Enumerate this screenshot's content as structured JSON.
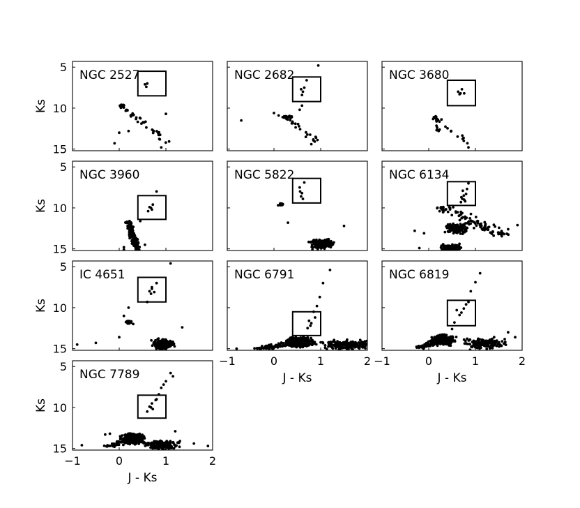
{
  "figure": {
    "xlabel": "J - Ks",
    "ylabel": "Ks",
    "xlim": [
      -1,
      2
    ],
    "ylim": [
      15.2,
      4.3
    ],
    "y_inverted": true,
    "xticks": [
      -1,
      0,
      1,
      2
    ],
    "xtick_labels": [
      "−1",
      "0",
      "1",
      "2"
    ],
    "yticks": [
      5,
      10,
      15
    ],
    "ytick_labels": [
      "5",
      "10",
      "15"
    ],
    "grid": false,
    "marker_color": "#000000"
  },
  "chart_data": [
    {
      "type": "scatter",
      "title": "NGC 2527",
      "box": {
        "x": [
          0.4,
          1.0
        ],
        "y": [
          5.5,
          8.5
        ]
      },
      "features": {
        "rc": [
          [
            0.55,
            7.1
          ],
          [
            0.58,
            7.4
          ],
          [
            0.6,
            7.0
          ]
        ],
        "rgb": [],
        "ms": [
          [
            0.05,
            9.7,
            15,
            0.2
          ],
          [
            1.05,
            14.2,
            40,
            0.25
          ]
        ],
        "extra": [
          [
            -0.1,
            14.3
          ],
          [
            0.0,
            13.0
          ],
          [
            0.9,
            14.8
          ],
          [
            1.0,
            10.7
          ],
          [
            0.2,
            12.8
          ]
        ]
      }
    },
    {
      "type": "scatter",
      "title": "NGC 2682",
      "box": {
        "x": [
          0.4,
          1.0
        ],
        "y": [
          6.2,
          9.2
        ]
      },
      "features": {
        "rc": [
          [
            0.58,
            7.7
          ],
          [
            0.62,
            8.0
          ],
          [
            0.6,
            8.4
          ],
          [
            0.65,
            7.5
          ],
          [
            0.7,
            6.6
          ],
          [
            0.6,
            9.7
          ],
          [
            0.55,
            10.2
          ]
        ],
        "rgb": [],
        "ms": [
          [
            0.25,
            11.1,
            8,
            0.2
          ],
          [
            0.95,
            14.2,
            24,
            0.3
          ],
          [
            0.4,
            11.0,
            6,
            0.15
          ]
        ],
        "extra": [
          [
            -0.7,
            11.5
          ],
          [
            0.0,
            10.6
          ],
          [
            0.1,
            10.9
          ],
          [
            0.95,
            4.8
          ],
          [
            0.8,
            14.4
          ],
          [
            0.9,
            13.6
          ]
        ]
      }
    },
    {
      "type": "scatter",
      "title": "NGC 3680",
      "box": {
        "x": [
          0.4,
          1.0
        ],
        "y": [
          6.6,
          9.7
        ]
      },
      "features": {
        "rc": [
          [
            0.63,
            8.0
          ],
          [
            0.68,
            8.2
          ],
          [
            0.76,
            8.2
          ],
          [
            0.71,
            7.7
          ],
          [
            0.66,
            8.3
          ]
        ],
        "rgb": [],
        "ms": [
          [
            0.15,
            11.2,
            6,
            0.1
          ],
          [
            0.9,
            14.5,
            16,
            0.25
          ],
          [
            0.2,
            12.8,
            8,
            0.2
          ]
        ],
        "extra": [
          [
            0.85,
            14.8
          ],
          [
            0.75,
            14.0
          ]
        ]
      }
    },
    {
      "type": "scatter",
      "title": "NGC 3960",
      "box": {
        "x": [
          0.4,
          1.0
        ],
        "y": [
          8.5,
          11.4
        ]
      },
      "features": {
        "rc": [
          [
            0.65,
            9.9
          ],
          [
            0.7,
            10.2
          ],
          [
            0.62,
            10.4
          ],
          [
            0.72,
            9.6
          ],
          [
            0.68,
            10.0
          ]
        ],
        "rgb": [
          [
            0.8,
            8.0
          ]
        ],
        "ms": [
          [
            0.2,
            11.8,
            2,
            0.15
          ],
          [
            0.4,
            15.2,
            140,
            0.2
          ]
        ],
        "extra": [
          [
            0.1,
            14.8
          ],
          [
            0.1,
            15.1
          ],
          [
            0.55,
            14.5
          ],
          [
            0.45,
            11.6
          ]
        ]
      }
    },
    {
      "type": "scatter",
      "title": "NGC 5822",
      "box": {
        "x": [
          0.4,
          1.0
        ],
        "y": [
          6.4,
          9.4
        ]
      },
      "features": {
        "rc": [
          [
            0.55,
            7.5
          ],
          [
            0.6,
            8.2
          ],
          [
            0.58,
            8.6
          ],
          [
            0.62,
            8.9
          ],
          [
            0.65,
            6.9
          ],
          [
            0.56,
            8.0
          ]
        ],
        "rgb": [],
        "ms": [
          [
            0.15,
            9.6,
            20,
            0.15
          ],
          [
            1.0,
            14.4,
            170,
            0.35
          ]
        ],
        "extra": [
          [
            1.5,
            12.2
          ],
          [
            0.3,
            11.8
          ],
          [
            0.9,
            14.8
          ]
        ]
      }
    },
    {
      "type": "scatter",
      "title": "NGC 6134",
      "box": {
        "x": [
          0.4,
          1.0
        ],
        "y": [
          6.8,
          9.7
        ]
      },
      "features": {
        "rc": [
          [
            0.7,
            8.7
          ],
          [
            0.72,
            8.9
          ],
          [
            0.75,
            8.5
          ],
          [
            0.78,
            9.2
          ],
          [
            0.8,
            8.3
          ],
          [
            0.73,
            7.9
          ],
          [
            0.82,
            7.7
          ],
          [
            0.76,
            9.0
          ],
          [
            0.69,
            9.3
          ]
        ],
        "rgb": [
          [
            0.85,
            7.0
          ]
        ],
        "ms": [
          [
            0.3,
            10.0,
            8,
            0.15
          ],
          [
            0.6,
            12.5,
            160,
            0.3
          ],
          [
            0.45,
            15.0,
            120,
            0.35
          ],
          [
            1.6,
            13.4,
            90,
            0.7
          ]
        ],
        "extra": [
          [
            -0.3,
            12.8
          ],
          [
            -0.1,
            13.1
          ],
          [
            -0.2,
            14.9
          ],
          [
            0.3,
            15.2
          ],
          [
            1.9,
            12.1
          ],
          [
            1.7,
            12.6
          ]
        ]
      }
    },
    {
      "type": "scatter",
      "title": "IC 4651",
      "box": {
        "x": [
          0.4,
          1.0
        ],
        "y": [
          6.3,
          9.3
        ]
      },
      "features": {
        "rc": [
          [
            0.7,
            7.7
          ],
          [
            0.65,
            8.0
          ],
          [
            0.75,
            8.1
          ],
          [
            0.68,
            8.3
          ],
          [
            0.8,
            7.0
          ],
          [
            0.6,
            9.3
          ],
          [
            0.7,
            7.5
          ]
        ],
        "rgb": [
          [
            0.2,
            10.0
          ],
          [
            0.1,
            11.0
          ]
        ],
        "ms": [
          [
            0.2,
            11.8,
            25,
            0.15
          ],
          [
            0.95,
            14.5,
            200,
            0.3
          ]
        ],
        "extra": [
          [
            -0.9,
            14.5
          ],
          [
            -0.5,
            14.3
          ],
          [
            0.0,
            13.6
          ],
          [
            1.35,
            12.4
          ],
          [
            1.1,
            4.6
          ],
          [
            0.3,
            12.0
          ]
        ]
      }
    },
    {
      "type": "scatter",
      "title": "NGC 6791",
      "box": {
        "x": [
          0.4,
          1.0
        ],
        "y": [
          10.5,
          13.4
        ]
      },
      "features": {
        "rc": [
          [
            0.75,
            11.6
          ],
          [
            0.8,
            11.9
          ],
          [
            0.78,
            12.2
          ],
          [
            0.72,
            12.5
          ]
        ],
        "rgb": [
          [
            0.85,
            10.5
          ],
          [
            0.92,
            9.8
          ],
          [
            0.98,
            8.7
          ],
          [
            1.05,
            7.0
          ],
          [
            1.2,
            5.4
          ],
          [
            0.88,
            11.2
          ]
        ],
        "ms": [
          [
            0.55,
            14.2,
            500,
            0.35
          ],
          [
            1.6,
            14.6,
            200,
            0.8
          ],
          [
            -0.3,
            15.0,
            100,
            0.6
          ]
        ],
        "extra": [
          [
            -0.8,
            15.0
          ],
          [
            1.95,
            14.1
          ],
          [
            1.8,
            14.6
          ]
        ]
      }
    },
    {
      "type": "scatter",
      "title": "NGC 6819",
      "box": {
        "x": [
          0.4,
          1.0
        ],
        "y": [
          9.1,
          12.2
        ]
      },
      "features": {
        "rc": [
          [
            0.6,
            10.3
          ],
          [
            0.7,
            10.6
          ],
          [
            0.75,
            10.1
          ],
          [
            0.66,
            10.9
          ],
          [
            0.8,
            9.6
          ]
        ],
        "rgb": [
          [
            0.85,
            9.3
          ],
          [
            0.9,
            8.0
          ],
          [
            1.0,
            6.9
          ],
          [
            1.1,
            5.8
          ],
          [
            0.55,
            11.8
          ],
          [
            0.5,
            12.6
          ]
        ],
        "ms": [
          [
            0.3,
            14.0,
            450,
            0.3
          ],
          [
            1.2,
            14.4,
            160,
            0.6
          ],
          [
            -0.2,
            14.9,
            80,
            0.4
          ]
        ],
        "extra": [
          [
            1.7,
            13.0
          ],
          [
            1.85,
            13.6
          ],
          [
            1.4,
            13.6
          ]
        ]
      }
    },
    {
      "type": "scatter",
      "title": "NGC 7789",
      "box": {
        "x": [
          0.4,
          1.0
        ],
        "y": [
          8.5,
          11.3
        ]
      },
      "features": {
        "rc": [
          [
            0.65,
            9.9
          ],
          [
            0.7,
            9.5
          ],
          [
            0.72,
            10.2
          ],
          [
            0.6,
            10.5
          ],
          [
            0.78,
            9.1
          ],
          [
            0.68,
            10.0
          ]
        ],
        "rgb": [
          [
            0.85,
            8.4
          ],
          [
            0.9,
            7.6
          ],
          [
            1.0,
            6.8
          ],
          [
            1.1,
            5.8
          ],
          [
            0.95,
            7.2
          ],
          [
            1.15,
            6.2
          ],
          [
            0.8,
            9.0
          ]
        ],
        "ms": [
          [
            0.3,
            13.8,
            500,
            0.3
          ],
          [
            0.9,
            14.6,
            160,
            0.5
          ],
          [
            -0.2,
            14.7,
            60,
            0.4
          ]
        ],
        "extra": [
          [
            -0.8,
            14.6
          ],
          [
            -0.2,
            13.2
          ],
          [
            -0.3,
            13.3
          ],
          [
            1.6,
            14.4
          ],
          [
            1.9,
            14.7
          ],
          [
            1.3,
            14.1
          ],
          [
            1.2,
            12.9
          ]
        ]
      }
    }
  ]
}
